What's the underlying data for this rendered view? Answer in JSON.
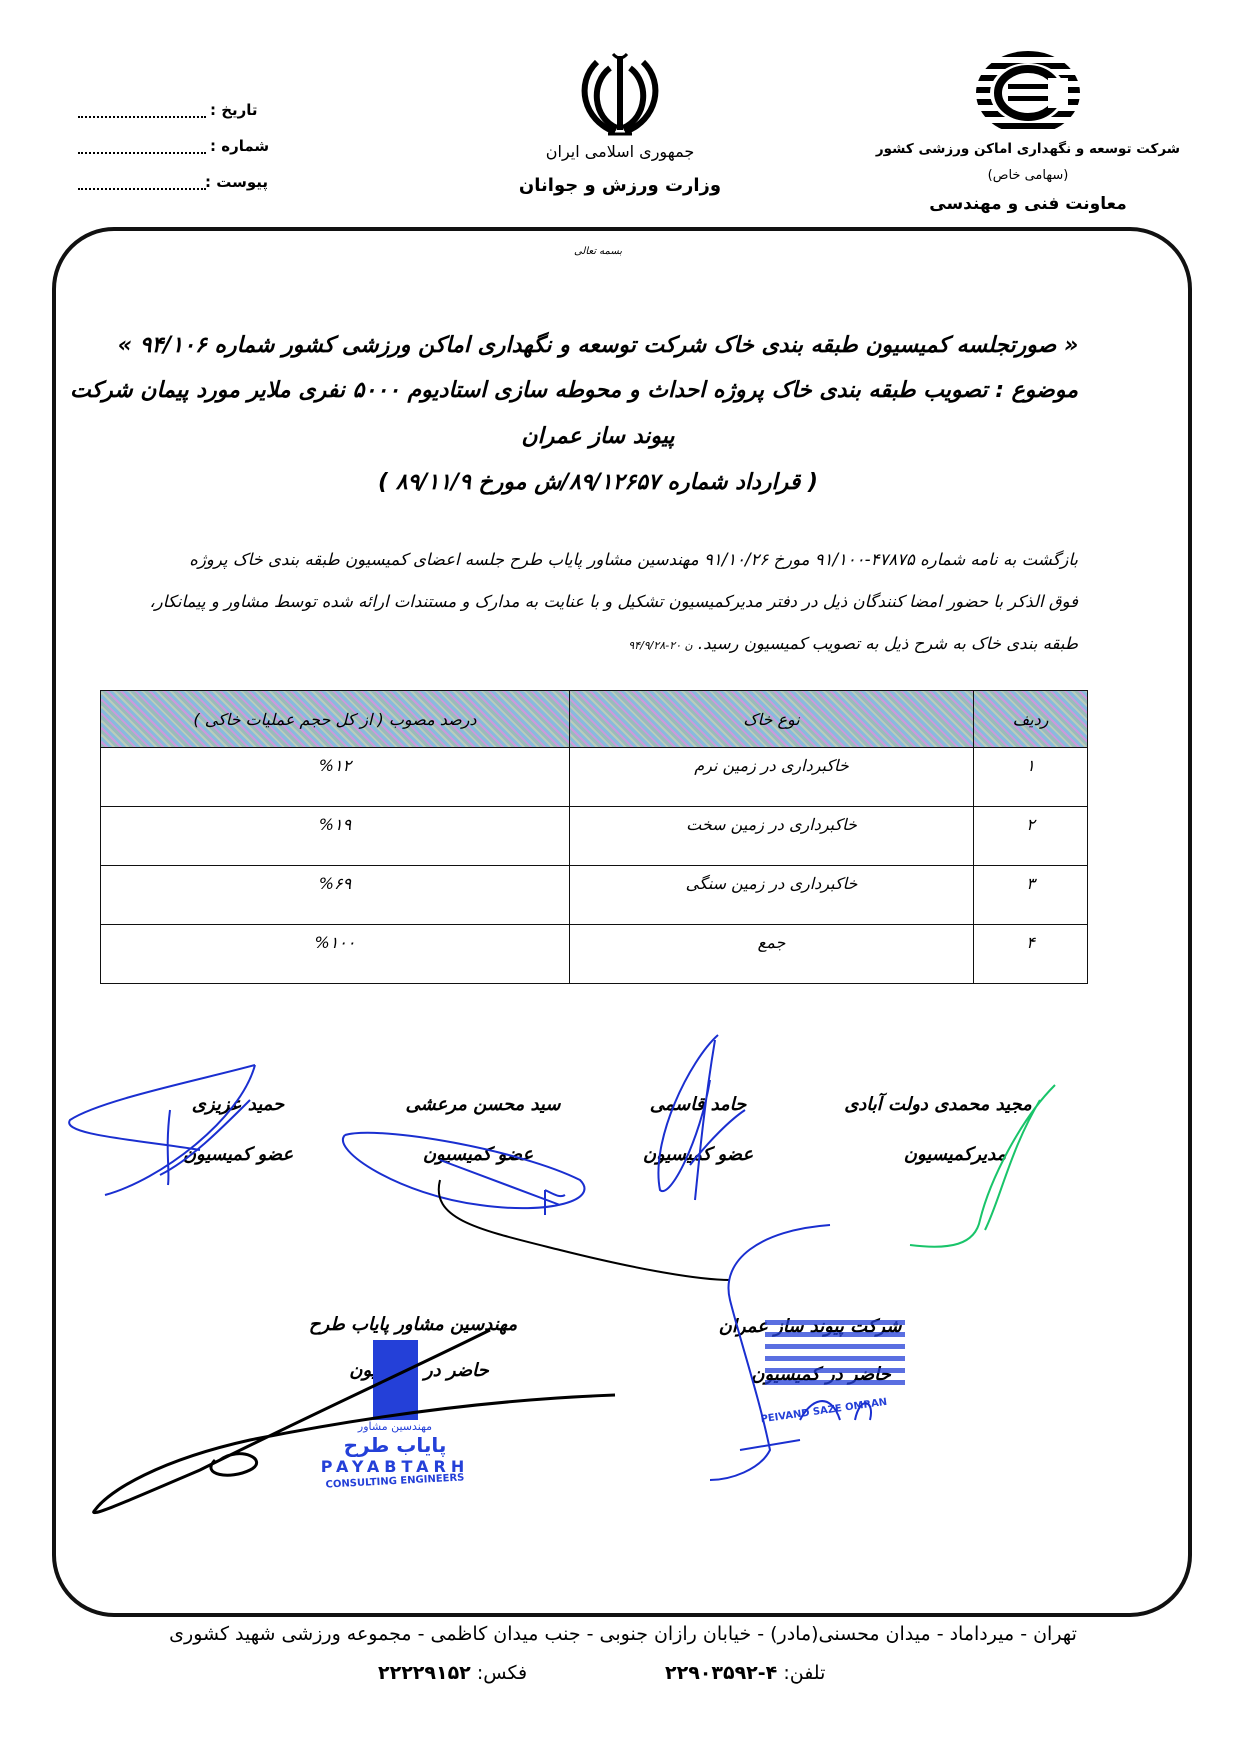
{
  "header": {
    "date_label": "تاریخ :",
    "number_label": "شماره :",
    "attachment_label": "پیوست :",
    "republic": "جمهوری اسلامی ایران",
    "ministry": "وزارت ورزش و جوانان",
    "company": "شرکت توسعه و نگهداری اماکن ورزشی کشور",
    "company_type": "(سهامی خاص)",
    "department": "معاونت فنی و مهندسی",
    "emblem_icon": "iran-emblem-icon",
    "company_logo_icon": "company-logo-icon"
  },
  "basmala": "بسمه تعالی",
  "title": {
    "line1": "« صورتجلسه کمیسیون طبقه بندی خاک شرکت توسعه و نگهداری اماکن ورزشی کشور شماره ۹۴/۱۰۶ »",
    "line2": "موضوع : تصویب طبقه بندی خاک پروژه احداث و محوطه سازی استادیوم ۵۰۰۰ نفری ملایر مورد پیمان شرکت",
    "line3": "پیوند ساز عمران",
    "line4": "( قرارداد شماره ۸۹/۱۲۶۵۷/ش مورخ ۸۹/۱۱/۹ )"
  },
  "body": {
    "line1": "بازگشت به نامه شماره ۴۷۸۷۵-۹۱/۱۰۰ مورخ ۹۱/۱۰/۲۶ مهندسین مشاور پایاب طرح جلسه اعضای کمیسیون طبقه بندی خاک پروژه",
    "line2": "فوق الذکر با حضور امضا کنندگان ذیل در دفتر مدیرکمیسیون تشکیل و با عنایت به مدارک و مستندات ارائه شده توسط مشاور و پیمانکار،",
    "line3": "طبقه بندی خاک به شرح ذیل به تصویب کمیسیون رسید.",
    "handwritten_note": "ن ۲۰-۹۴/۹/۲۸"
  },
  "table": {
    "headers": [
      "ردیف",
      "نوع خاک",
      "درصد مصوب ( از کل حجم عملیات خاکی )"
    ],
    "rows": [
      [
        "۱",
        "خاکبرداری در زمین نرم",
        "%۱۲"
      ],
      [
        "۲",
        "خاکبرداری در زمین سخت",
        "%۱۹"
      ],
      [
        "۳",
        "خاکبرداری در زمین سنگی",
        "%۶۹"
      ],
      [
        "۴",
        "جمع",
        "%۱۰۰"
      ]
    ]
  },
  "signatories": [
    {
      "name": "مجید محمدی دولت آبادی",
      "role": "مدیرکمیسیون"
    },
    {
      "name": "حامد قاسمی",
      "role": "عضو کمیسیون"
    },
    {
      "name": "سید محسن مرعشی",
      "role": "عضو کمیسیون"
    },
    {
      "name": "حمید عزیزی",
      "role": "عضو کمیسیون"
    }
  ],
  "attendees": [
    {
      "name": "شرکت پیوند ساز عمران",
      "role": "حاضر در کمیسیون",
      "stamp_text": "PEIVAND SAZE OMRAN"
    },
    {
      "name": "مهندسین مشاور پایاب طرح",
      "role": "حاضر در کمیسیون",
      "stamp_fa_small": "مهندسین مشاور",
      "stamp_fa": "پایاب طرح",
      "stamp_en": "PAYABTARH",
      "stamp_en_sub": "CONSULTING ENGINEERS"
    }
  ],
  "footer": {
    "address": "تهران - میرداماد - میدان محسنی(مادر) - خیابان رازان جنوبی - جنب میدان کاظمی - مجموعه ورزشی شهید کشوری",
    "phone_label": "تلفن:",
    "phone": "۴-۲۲۹۰۳۵۹۲",
    "fax_label": "فکس:",
    "fax": "۲۲۲۲۹۱۵۲"
  },
  "colors": {
    "ink": "#000000",
    "signature_blue": "#1a2fd0",
    "signature_green": "#19c46a",
    "stamp_blue": "#2440d8"
  }
}
